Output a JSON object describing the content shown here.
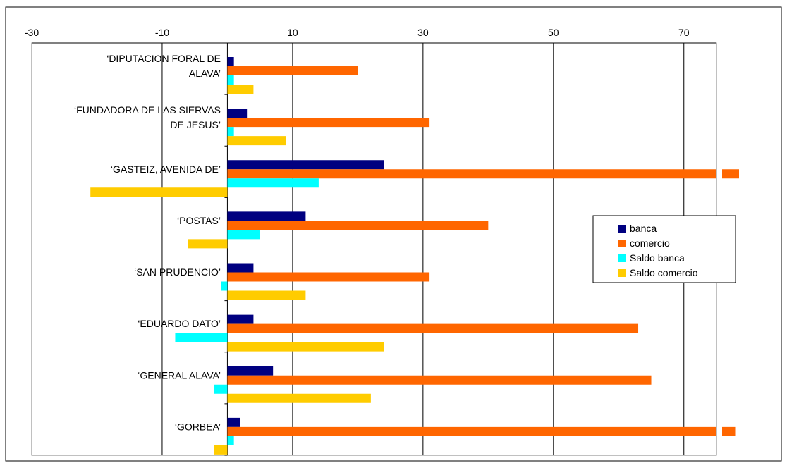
{
  "chart_data": {
    "type": "bar",
    "orientation": "horizontal",
    "title": "",
    "xlabel": "",
    "ylabel": "",
    "xlim": [
      -30,
      75
    ],
    "x_ticks": [
      -30,
      -10,
      10,
      30,
      50,
      70
    ],
    "x_tick_labels": [
      "-30",
      "-10",
      "10",
      "30",
      "50",
      "70"
    ],
    "x_axis_position": "top",
    "grid": true,
    "legend_position": "right",
    "categories": [
      [
        "‘DIPUTACION FORAL DE",
        "ALAVA’"
      ],
      [
        "‘FUNDADORA DE LAS SIERVAS",
        "DE JESUS’"
      ],
      [
        "‘GASTEIZ, AVENIDA DE’"
      ],
      [
        "‘POSTAS’"
      ],
      [
        "‘SAN PRUDENCIO’"
      ],
      [
        "‘EDUARDO DATO’"
      ],
      [
        "‘GENERAL ALAVA’"
      ],
      [
        "‘GORBEA’"
      ]
    ],
    "series": [
      {
        "name": "banca",
        "color": "#000080",
        "values": [
          1,
          3,
          24,
          12,
          4,
          4,
          7,
          2
        ]
      },
      {
        "name": "comercio",
        "color": "#FF6600",
        "values": [
          20,
          31,
          78,
          40,
          31,
          63,
          65,
          77
        ]
      },
      {
        "name": "Saldo banca",
        "color": "#00FFFF",
        "values": [
          1,
          1,
          14,
          5,
          -1,
          -8,
          -2,
          1
        ]
      },
      {
        "name": "Saldo comercio",
        "color": "#FFCC00",
        "values": [
          4,
          9,
          -21,
          -6,
          12,
          24,
          22,
          -2
        ]
      }
    ]
  }
}
